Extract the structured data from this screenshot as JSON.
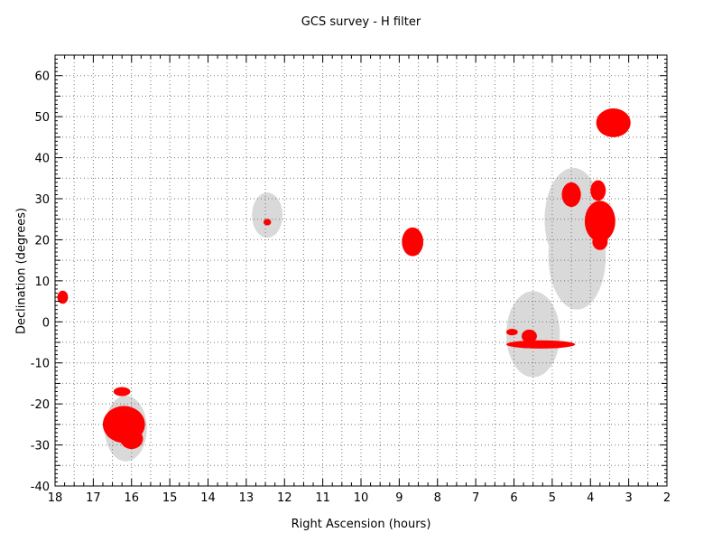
{
  "chart_data": {
    "type": "scatter",
    "title": "GCS survey - H filter",
    "xlabel": "Right Ascension (hours)",
    "ylabel": "Declination (degrees)",
    "xlim": [
      18,
      2
    ],
    "ylim": [
      -40,
      65
    ],
    "x_ticks": [
      18,
      17,
      16,
      15,
      14,
      13,
      12,
      11,
      10,
      9,
      8,
      7,
      6,
      5,
      4,
      3,
      2
    ],
    "y_ticks": [
      60,
      50,
      40,
      30,
      20,
      10,
      0,
      -10,
      -20,
      -30,
      -40
    ],
    "grid": true,
    "colors": {
      "observed": "#ff0000",
      "planned": "#d9d9d9"
    },
    "planned_regions": [
      {
        "ra": 16.15,
        "dec": -26,
        "ra_halfwidth": 0.55,
        "dec_halfwidth": 8
      },
      {
        "ra": 12.45,
        "dec": 26,
        "ra_halfwidth": 0.4,
        "dec_halfwidth": 5.5
      },
      {
        "ra": 4.45,
        "dec": 25,
        "ra_halfwidth": 0.75,
        "dec_halfwidth": 12.5
      },
      {
        "ra": 4.35,
        "dec": 16,
        "ra_halfwidth": 0.75,
        "dec_halfwidth": 13
      },
      {
        "ra": 5.5,
        "dec": -3,
        "ra_halfwidth": 0.7,
        "dec_halfwidth": 10.5
      }
    ],
    "observed_fields": [
      {
        "ra": 17.8,
        "dec": 6,
        "ra_halfwidth": 0.14,
        "dec_halfwidth": 1.6
      },
      {
        "ra": 16.25,
        "dec": -17,
        "ra_halfwidth": 0.22,
        "dec_halfwidth": 1.1
      },
      {
        "ra": 16.2,
        "dec": -25,
        "ra_halfwidth": 0.55,
        "dec_halfwidth": 4.5
      },
      {
        "ra": 16.0,
        "dec": -28.5,
        "ra_halfwidth": 0.3,
        "dec_halfwidth": 2.5
      },
      {
        "ra": 12.45,
        "dec": 24.3,
        "ra_halfwidth": 0.1,
        "dec_halfwidth": 0.8
      },
      {
        "ra": 8.65,
        "dec": 19.5,
        "ra_halfwidth": 0.28,
        "dec_halfwidth": 3.5
      },
      {
        "ra": 6.05,
        "dec": -2.5,
        "ra_halfwidth": 0.15,
        "dec_halfwidth": 0.8
      },
      {
        "ra": 5.6,
        "dec": -3.5,
        "ra_halfwidth": 0.2,
        "dec_halfwidth": 1.6
      },
      {
        "ra": 5.3,
        "dec": -5.5,
        "ra_halfwidth": 0.9,
        "dec_halfwidth": 1.0
      },
      {
        "ra": 4.5,
        "dec": 31,
        "ra_halfwidth": 0.25,
        "dec_halfwidth": 3
      },
      {
        "ra": 3.8,
        "dec": 32,
        "ra_halfwidth": 0.2,
        "dec_halfwidth": 2.5
      },
      {
        "ra": 3.75,
        "dec": 24.5,
        "ra_halfwidth": 0.4,
        "dec_halfwidth": 5
      },
      {
        "ra": 3.75,
        "dec": 19.5,
        "ra_halfwidth": 0.2,
        "dec_halfwidth": 2
      },
      {
        "ra": 3.4,
        "dec": 48.5,
        "ra_halfwidth": 0.45,
        "dec_halfwidth": 3.5
      }
    ]
  }
}
